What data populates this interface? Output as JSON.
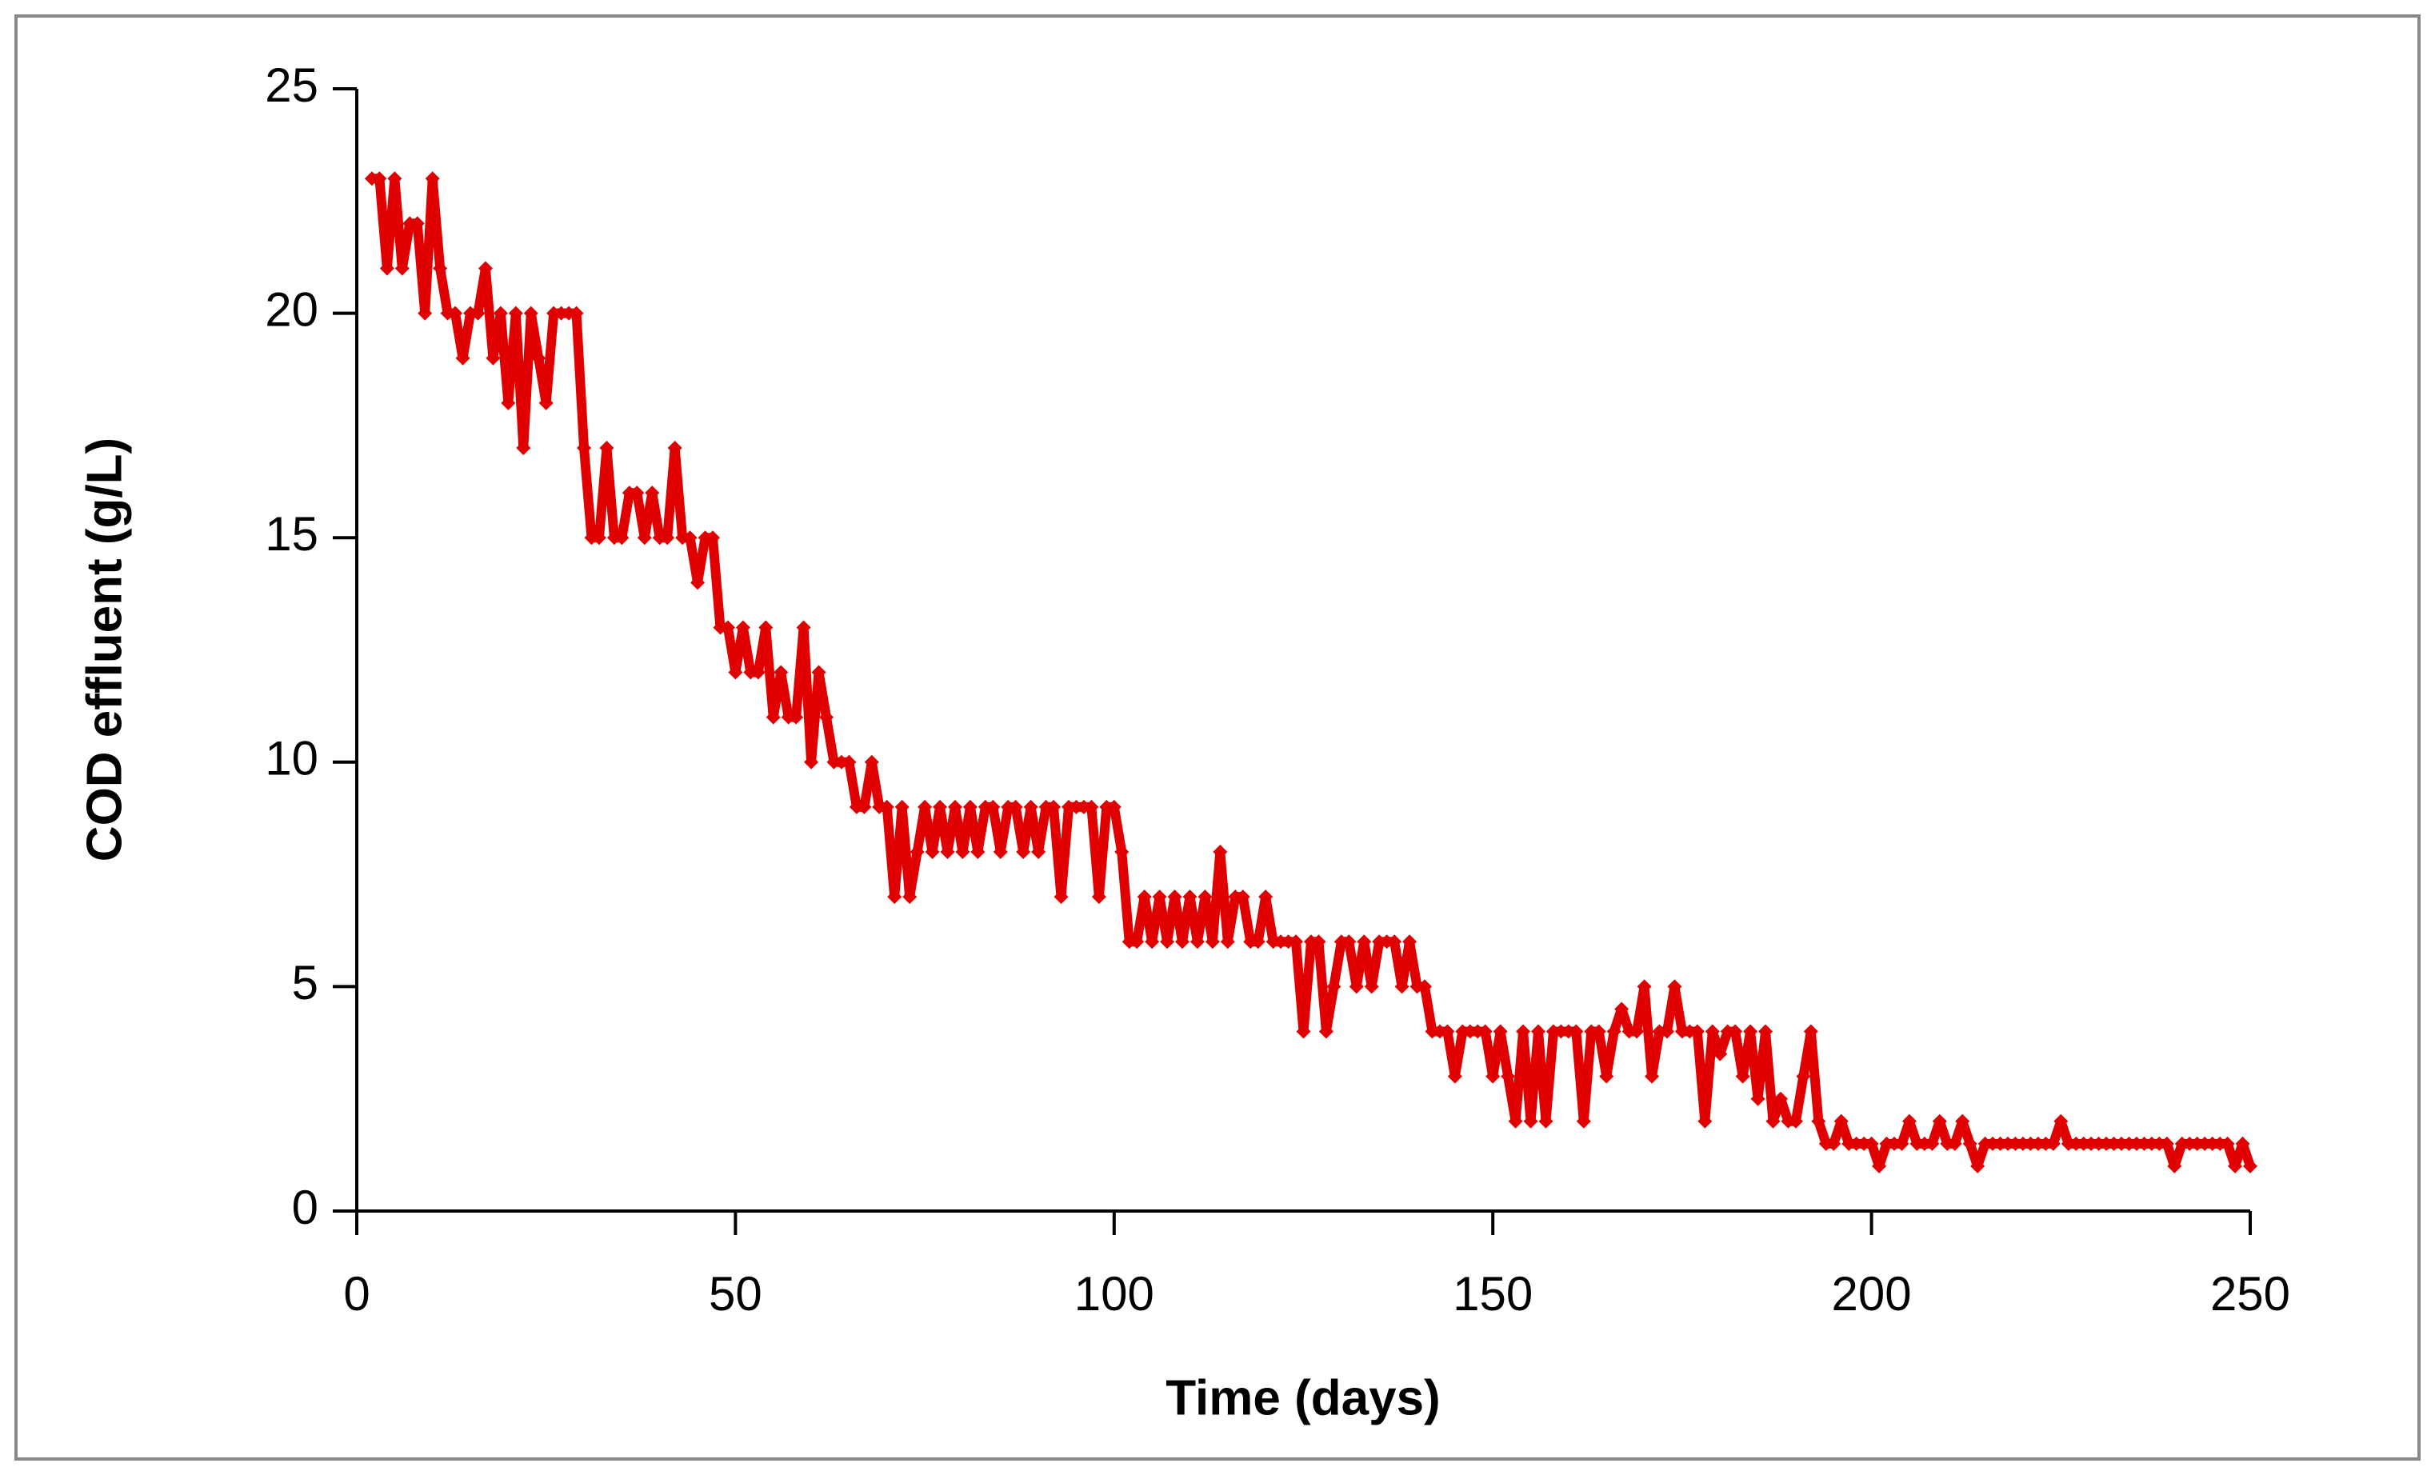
{
  "chart_data": {
    "type": "line",
    "xlabel": "Time (days)",
    "ylabel": "COD effluent (g/L)",
    "xlim": [
      0,
      250
    ],
    "xticks": [
      0,
      50,
      100,
      150,
      200,
      250
    ],
    "ylim": [
      0,
      25
    ],
    "yticks": [
      0,
      5,
      10,
      15,
      20,
      25
    ],
    "grid": false,
    "x": [
      2,
      3,
      4,
      5,
      6,
      7,
      8,
      9,
      10,
      11,
      12,
      13,
      14,
      15,
      16,
      17,
      18,
      19,
      20,
      21,
      22,
      23,
      24,
      25,
      26,
      27,
      28,
      29,
      30,
      31,
      32,
      33,
      34,
      35,
      36,
      37,
      38,
      39,
      40,
      41,
      42,
      43,
      44,
      45,
      46,
      47,
      48,
      49,
      50,
      51,
      52,
      53,
      54,
      55,
      56,
      57,
      58,
      59,
      60,
      61,
      62,
      63,
      64,
      65,
      66,
      67,
      68,
      69,
      70,
      71,
      72,
      73,
      74,
      75,
      76,
      77,
      78,
      79,
      80,
      81,
      82,
      83,
      84,
      85,
      86,
      87,
      88,
      89,
      90,
      91,
      92,
      93,
      94,
      95,
      96,
      97,
      98,
      99,
      100,
      101,
      102,
      103,
      104,
      105,
      106,
      107,
      108,
      109,
      110,
      111,
      112,
      113,
      114,
      115,
      116,
      117,
      118,
      119,
      120,
      121,
      122,
      123,
      124,
      125,
      126,
      127,
      128,
      129,
      130,
      131,
      132,
      133,
      134,
      135,
      136,
      137,
      138,
      139,
      140,
      141,
      142,
      143,
      144,
      145,
      146,
      147,
      148,
      149,
      150,
      151,
      152,
      153,
      154,
      155,
      156,
      157,
      158,
      159,
      160,
      161,
      162,
      163,
      164,
      165,
      166,
      167,
      168,
      169,
      170,
      171,
      172,
      173,
      174,
      175,
      176,
      177,
      178,
      179,
      180,
      181,
      182,
      183,
      184,
      185,
      186,
      187,
      188,
      189,
      190,
      191,
      192,
      193,
      194,
      195,
      196,
      197,
      198,
      199,
      200,
      201,
      202,
      203,
      204,
      205,
      206,
      207,
      208,
      209,
      210,
      211,
      212,
      213,
      214,
      215,
      216,
      217,
      218,
      219,
      220,
      221,
      222,
      223,
      224,
      225,
      226,
      227,
      228,
      229,
      230,
      231,
      232,
      233,
      234,
      235,
      236,
      237,
      238,
      239,
      240,
      241,
      242,
      243,
      244,
      245,
      246,
      247,
      248,
      249,
      250
    ],
    "series": [
      {
        "name": "COD effluent",
        "color": "#e00000",
        "values": [
          23,
          23,
          21,
          23,
          21,
          22,
          22,
          20,
          23,
          21,
          20,
          20,
          19,
          20,
          20,
          21,
          19,
          20,
          18,
          20,
          17,
          20,
          19,
          18,
          20,
          20,
          20,
          20,
          17,
          15,
          15,
          17,
          15,
          15,
          16,
          16,
          15,
          16,
          15,
          15,
          17,
          15,
          15,
          14,
          15,
          15,
          13,
          13,
          12,
          13,
          12,
          12,
          13,
          11,
          12,
          11,
          11,
          13,
          10,
          12,
          11,
          10,
          10,
          10,
          9,
          9,
          10,
          9,
          9,
          7,
          9,
          7,
          8,
          9,
          8,
          9,
          8,
          9,
          8,
          9,
          8,
          9,
          9,
          8,
          9,
          9,
          8,
          9,
          8,
          9,
          9,
          7,
          9,
          9,
          9,
          9,
          7,
          9,
          9,
          8,
          6,
          6,
          7,
          6,
          7,
          6,
          7,
          6,
          7,
          6,
          7,
          6,
          8,
          6,
          7,
          7,
          6,
          6,
          7,
          6,
          6,
          6,
          6,
          4,
          6,
          6,
          4,
          5,
          6,
          6,
          5,
          6,
          5,
          6,
          6,
          6,
          5,
          6,
          5,
          5,
          4,
          4,
          4,
          3,
          4,
          4,
          4,
          4,
          3,
          4,
          3,
          2,
          4,
          2,
          4,
          2,
          4,
          4,
          4,
          4,
          2,
          4,
          4,
          3,
          4,
          4.5,
          4,
          4,
          5,
          3,
          4,
          4,
          5,
          4,
          4,
          4,
          2,
          4,
          3.5,
          4,
          4,
          3,
          4,
          2.5,
          4,
          2,
          2.5,
          2,
          2,
          3,
          4,
          2,
          1.5,
          1.5,
          2,
          1.5,
          1.5,
          1.5,
          1.5,
          1,
          1.5,
          1.5,
          1.5,
          2,
          1.5,
          1.5,
          1.5,
          2,
          1.5,
          1.5,
          2,
          1.5,
          1,
          1.5,
          1.5,
          1.5,
          1.5,
          1.5,
          1.5,
          1.5,
          1.5,
          1.5,
          1.5,
          2,
          1.5,
          1.5,
          1.5,
          1.5,
          1.5,
          1.5,
          1.5,
          1.5,
          1.5,
          1.5,
          1.5,
          1.5,
          1.5,
          1.5,
          1,
          1.5,
          1.5,
          1.5,
          1.5,
          1.5,
          1.5,
          1.5,
          1,
          1.5,
          1
        ]
      }
    ]
  }
}
